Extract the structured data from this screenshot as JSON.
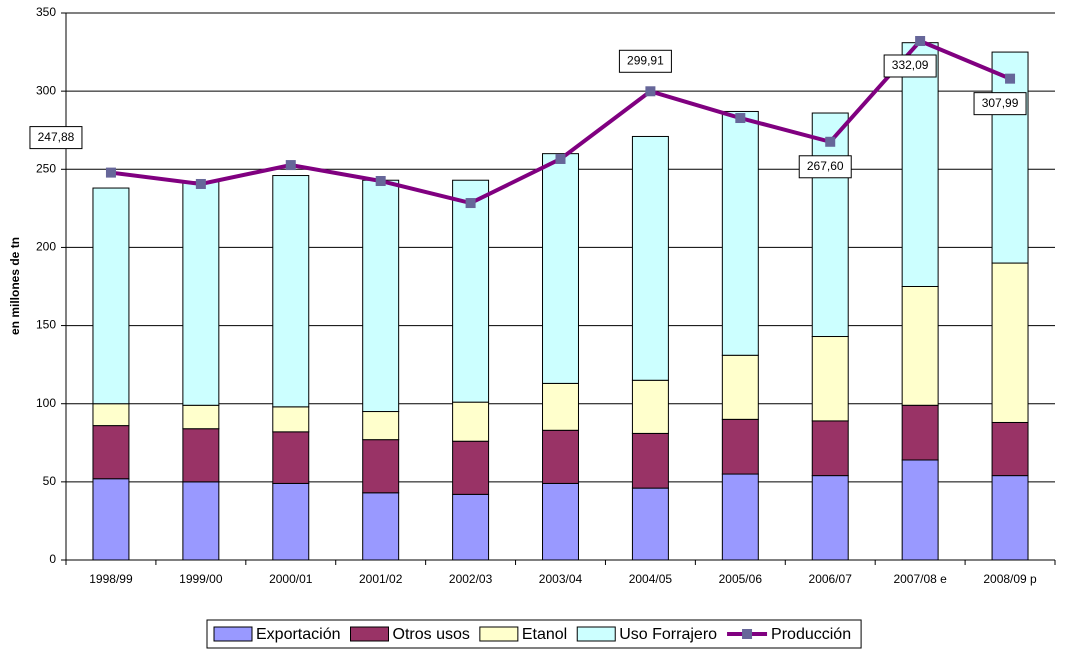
{
  "chart_data": {
    "type": "bar",
    "stacked": true,
    "y_label": "en millones de tn",
    "categories": [
      "1998/99",
      "1999/00",
      "2000/01",
      "2001/02",
      "2002/03",
      "2003/04",
      "2004/05",
      "2005/06",
      "2006/07",
      "2007/08 e",
      "2008/09 p"
    ],
    "series": [
      {
        "name": "Exportación",
        "type": "bar",
        "color": "#9999ff",
        "values": [
          52,
          50,
          49,
          43,
          42,
          49,
          46,
          55,
          54,
          64,
          54
        ]
      },
      {
        "name": "Otros usos",
        "type": "bar",
        "color": "#993366",
        "values": [
          34,
          34,
          33,
          34,
          34,
          34,
          35,
          35,
          35,
          35,
          34
        ]
      },
      {
        "name": "Etanol",
        "type": "bar",
        "color": "#ffffcc",
        "values": [
          14,
          15,
          16,
          18,
          25,
          30,
          34,
          41,
          54,
          76,
          102
        ]
      },
      {
        "name": "Uso Forrajero",
        "type": "bar",
        "color": "#ccffff",
        "values": [
          138,
          143,
          148,
          148,
          142,
          147,
          156,
          156,
          143,
          156,
          135
        ]
      },
      {
        "name": "Producción",
        "type": "line",
        "color": "#800080",
        "marker_color": "#666699",
        "values": [
          247.88,
          240.6,
          252.7,
          242.5,
          228.4,
          256.6,
          299.91,
          282.8,
          267.6,
          332.09,
          307.99
        ],
        "value_labels": [
          "247,88",
          null,
          null,
          null,
          null,
          null,
          "299,91",
          null,
          "267,60",
          "332,09",
          "307,99"
        ]
      }
    ],
    "ylim": [
      0,
      350
    ],
    "yticks": [
      0,
      50,
      100,
      150,
      200,
      250,
      300,
      350
    ],
    "grid": true,
    "legend": "bottom"
  }
}
